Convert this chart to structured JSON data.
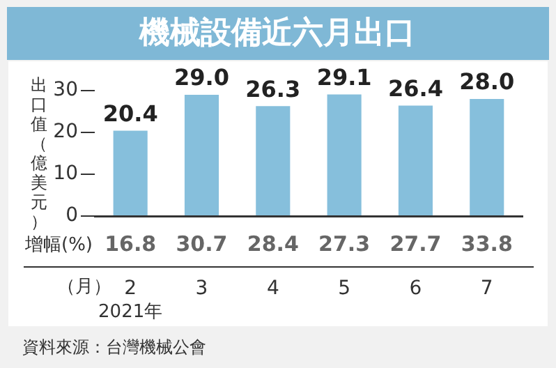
{
  "chart_data": {
    "type": "bar",
    "title": "機械設備近六月出口",
    "ylabel": "出口值（億美元）",
    "xlabel": "（月）",
    "categories": [
      "2",
      "3",
      "4",
      "5",
      "6",
      "7"
    ],
    "values": [
      20.4,
      29.0,
      26.3,
      29.1,
      26.4,
      28.0
    ],
    "color": "#86bfdc",
    "value_labels": [
      "20.4",
      "29.0",
      "26.3",
      "29.1",
      "26.4",
      "28.0"
    ],
    "ylim": [
      0,
      30
    ],
    "yticks": [
      0,
      10,
      20,
      30
    ],
    "grid": false,
    "legend": false,
    "annotations": [
      "增幅(%)",
      "16.8",
      "30.7",
      "28.4",
      "27.3",
      "27.7",
      "33.8",
      "2021年",
      "資料來源：台灣機械公會"
    ]
  }
}
